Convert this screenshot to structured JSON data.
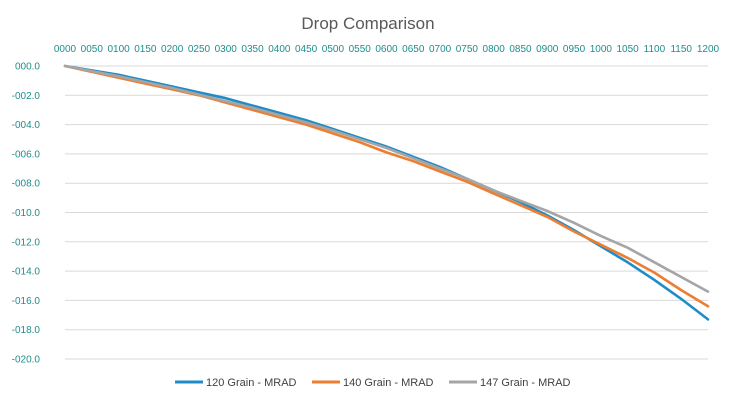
{
  "chart_data": {
    "type": "line",
    "title": "Drop Comparison",
    "xlabel": "",
    "ylabel": "",
    "x": [
      0,
      50,
      100,
      150,
      200,
      250,
      300,
      350,
      400,
      450,
      500,
      550,
      600,
      650,
      700,
      750,
      800,
      850,
      900,
      950,
      1000,
      1050,
      1100,
      1150,
      1200
    ],
    "x_tick_labels": [
      "0000",
      "0050",
      "0100",
      "0150",
      "0200",
      "0250",
      "0300",
      "0350",
      "0400",
      "0450",
      "0500",
      "0550",
      "0600",
      "0650",
      "0700",
      "0750",
      "0800",
      "0850",
      "0900",
      "0950",
      "1000",
      "1050",
      "1100",
      "1150",
      "1200"
    ],
    "y_ticks": [
      0,
      -2,
      -4,
      -6,
      -8,
      -10,
      -12,
      -14,
      -16,
      -18,
      -20
    ],
    "y_tick_labels": [
      "000.0",
      "-002.0",
      "-004.0",
      "-006.0",
      "-008.0",
      "-010.0",
      "-012.0",
      "-014.0",
      "-016.0",
      "-018.0",
      "-020.0"
    ],
    "ylim": [
      -20,
      0
    ],
    "xlim": [
      0,
      1200
    ],
    "x_axis_position": "top",
    "grid": true,
    "legend_position": "bottom",
    "series": [
      {
        "name": "120 Grain - MRAD",
        "color": "#1f8cc8",
        "values": [
          0,
          -0.3,
          -0.6,
          -1.0,
          -1.4,
          -1.8,
          -2.2,
          -2.7,
          -3.2,
          -3.7,
          -4.3,
          -4.9,
          -5.5,
          -6.2,
          -6.9,
          -7.7,
          -8.5,
          -9.3,
          -10.2,
          -11.2,
          -12.3,
          -13.4,
          -14.6,
          -15.9,
          -17.3
        ]
      },
      {
        "name": "140 Grain - MRAD",
        "color": "#ed7d31",
        "values": [
          0,
          -0.4,
          -0.8,
          -1.2,
          -1.6,
          -2.0,
          -2.5,
          -3.0,
          -3.5,
          -4.0,
          -4.6,
          -5.2,
          -5.9,
          -6.5,
          -7.2,
          -7.9,
          -8.7,
          -9.5,
          -10.3,
          -11.3,
          -12.2,
          -13.1,
          -14.1,
          -15.3,
          -16.4
        ]
      },
      {
        "name": "147 Grain - MRAD",
        "color": "#a5a5a5",
        "values": [
          0,
          -0.35,
          -0.7,
          -1.1,
          -1.5,
          -1.95,
          -2.4,
          -2.85,
          -3.35,
          -3.85,
          -4.4,
          -5.0,
          -5.6,
          -6.3,
          -7.0,
          -7.7,
          -8.5,
          -9.2,
          -9.9,
          -10.7,
          -11.6,
          -12.4,
          -13.4,
          -14.4,
          -15.4
        ]
      }
    ]
  }
}
